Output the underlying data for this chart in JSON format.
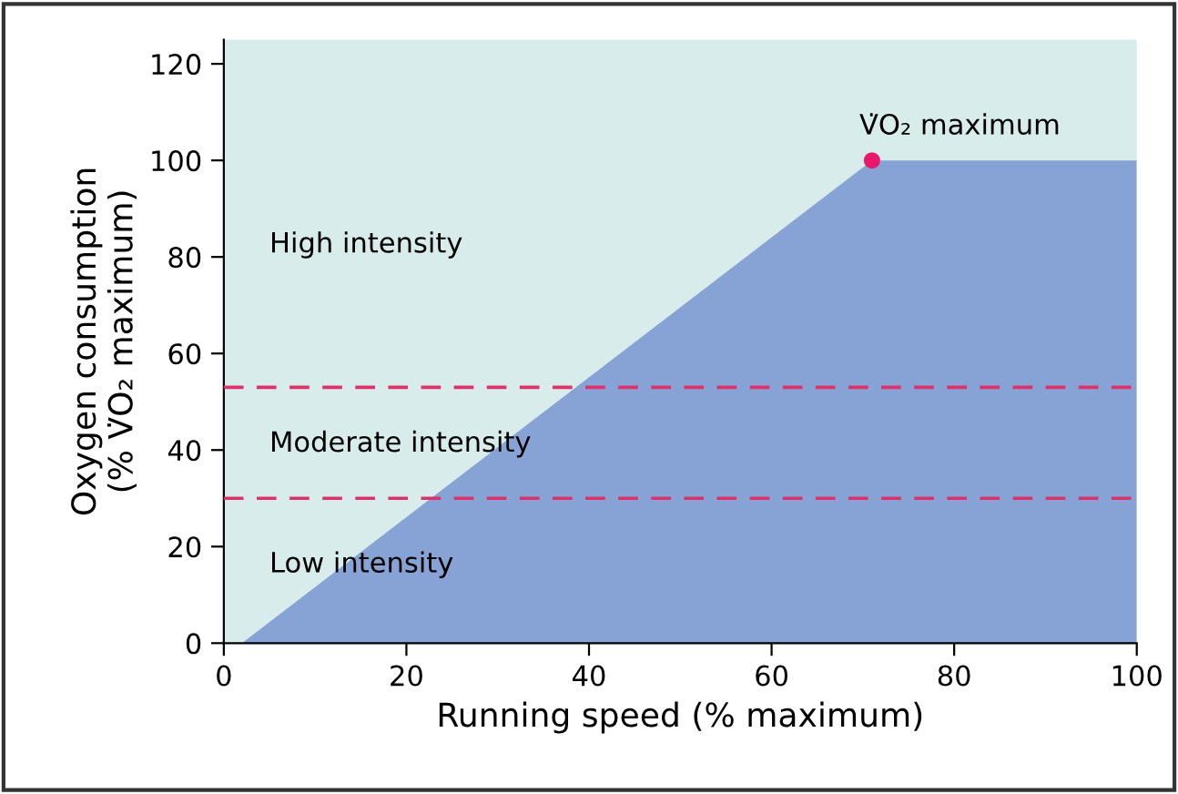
{
  "chart_data": {
    "type": "area",
    "xlabel": "Running speed (% maximum)",
    "ylabel": "Oxygen consumption\n(% V̇O₂ maximum)",
    "xlim": [
      0,
      100
    ],
    "ylim": [
      0,
      125
    ],
    "xticks": [
      0,
      20,
      40,
      60,
      80,
      100
    ],
    "yticks": [
      0,
      20,
      40,
      60,
      80,
      100,
      120
    ],
    "series": [
      {
        "color": "#87a3d5",
        "x": [
          2,
          71,
          100
        ],
        "values": [
          0,
          100,
          100
        ]
      },
      {
        "type": "scatter",
        "color": "#e8186a",
        "x": [
          71
        ],
        "values": [
          100
        ]
      }
    ],
    "ref_lines": [
      {
        "axis": "y",
        "value": 53,
        "color": "#e0306a",
        "line_style": "dashed"
      },
      {
        "axis": "y",
        "value": 30,
        "color": "#e0306a",
        "line_style": "dashed"
      }
    ],
    "annotations": [
      {
        "text": "V̇O₂ maximum",
        "x": 71,
        "y": 100
      },
      "High intensity",
      "Moderate intensity",
      "Low intensity"
    ]
  }
}
